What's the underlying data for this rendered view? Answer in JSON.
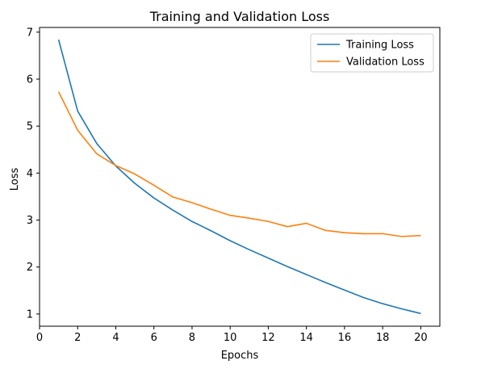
{
  "chart_data": {
    "type": "line",
    "title": "Training and Validation Loss",
    "xlabel": "Epochs",
    "ylabel": "Loss",
    "xlim": [
      0,
      21
    ],
    "ylim": [
      0.74,
      7.1
    ],
    "xticks": [
      0,
      2,
      4,
      6,
      8,
      10,
      12,
      14,
      16,
      18,
      20
    ],
    "yticks": [
      1,
      2,
      3,
      4,
      5,
      6,
      7
    ],
    "grid": false,
    "legend_position": "top-right",
    "x": [
      1,
      2,
      3,
      4,
      5,
      6,
      7,
      8,
      9,
      10,
      11,
      12,
      13,
      14,
      15,
      16,
      17,
      18,
      19,
      20
    ],
    "series": [
      {
        "name": "Training Loss",
        "color": "#1f77b4",
        "values": [
          6.84,
          5.32,
          4.63,
          4.15,
          3.78,
          3.47,
          3.21,
          2.97,
          2.77,
          2.56,
          2.37,
          2.19,
          2.01,
          1.84,
          1.67,
          1.51,
          1.35,
          1.22,
          1.11,
          1.01
        ]
      },
      {
        "name": "Validation Loss",
        "color": "#ff7f0e",
        "values": [
          5.73,
          4.91,
          4.41,
          4.16,
          3.98,
          3.74,
          3.49,
          3.37,
          3.23,
          3.1,
          3.04,
          2.97,
          2.86,
          2.93,
          2.78,
          2.73,
          2.71,
          2.71,
          2.65,
          2.67
        ]
      }
    ]
  }
}
